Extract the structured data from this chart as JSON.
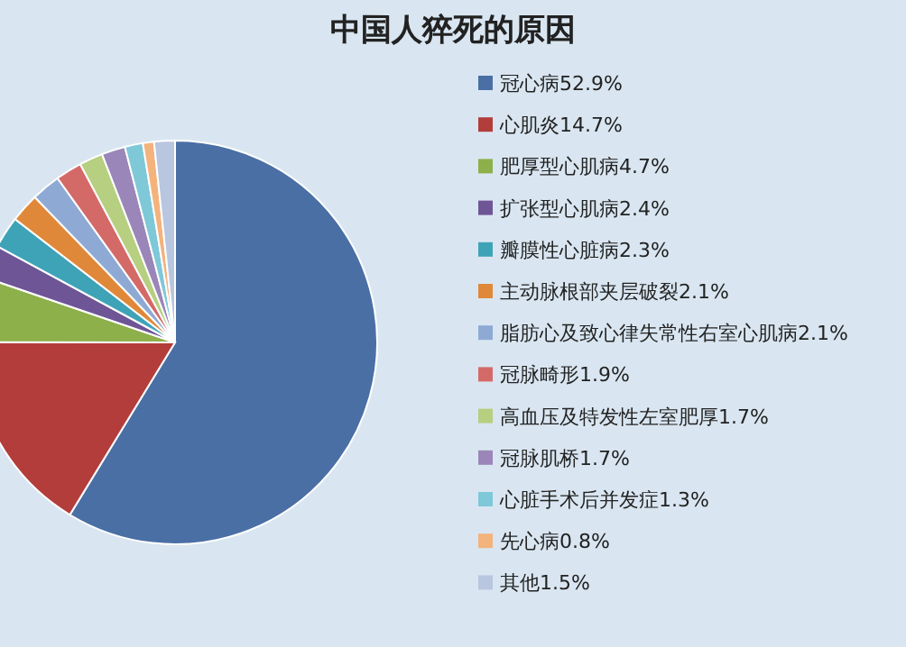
{
  "chart_data": {
    "type": "pie",
    "title": "中国人猝死的原因",
    "categories": [
      "冠心病52.9%",
      "心肌炎14.7%",
      "肥厚型心肌病4.7%",
      "扩张型心肌病2.4%",
      "瓣膜性心脏病2.3%",
      "主动脉根部夹层破裂2.1%",
      "脂肪心及致心律失常性右室心肌病2.1%",
      "冠脉畸形1.9%",
      "高血压及特发性左室肥厚1.7%",
      "冠脉肌桥1.7%",
      "心脏手术后并发症1.3%",
      "先心病0.8%",
      "其他1.5%"
    ],
    "values": [
      52.9,
      14.7,
      4.7,
      2.4,
      2.3,
      2.1,
      2.1,
      1.9,
      1.7,
      1.7,
      1.3,
      0.8,
      1.5
    ],
    "colors": [
      "#4a6fa5",
      "#b33d3a",
      "#8db04a",
      "#6e5596",
      "#3fa3b8",
      "#e0883a",
      "#8eaad4",
      "#d46a68",
      "#b6cf80",
      "#9a86b8",
      "#7ec8d8",
      "#f4b27c",
      "#b8c6df"
    ],
    "legend": "right"
  }
}
